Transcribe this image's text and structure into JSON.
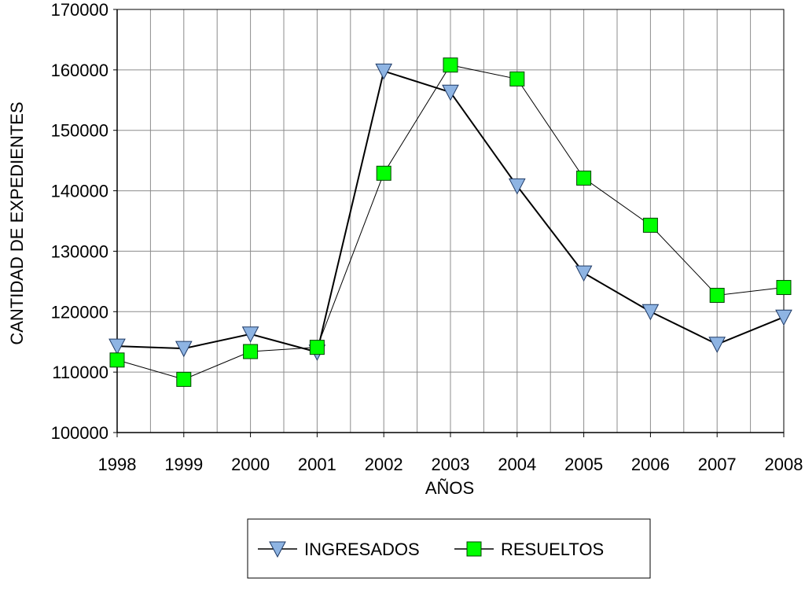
{
  "chart_data": {
    "type": "line",
    "title": "",
    "xlabel": "AÑOS",
    "ylabel": "CANTIDAD DE EXPEDIENTES",
    "x": [
      "1998",
      "1999",
      "2000",
      "2001",
      "2002",
      "2003",
      "2004",
      "2005",
      "2006",
      "2007",
      "2008"
    ],
    "ylim": [
      100000,
      170000
    ],
    "yticks": [
      "100000",
      "110000",
      "120000",
      "130000",
      "140000",
      "150000",
      "160000",
      "170000"
    ],
    "grid": true,
    "legend": "bottom",
    "series": [
      {
        "name": "INGRESADOS",
        "marker": "triangle-down",
        "color": "#8EB4E3",
        "values": [
          114300,
          113900,
          116300,
          113300,
          159800,
          156300,
          140800,
          126400,
          120000,
          114600,
          119100
        ]
      },
      {
        "name": "RESUELTOS",
        "marker": "square",
        "color": "#00FF00",
        "values": [
          112000,
          108800,
          113400,
          114100,
          142900,
          160800,
          158500,
          142100,
          134300,
          122700,
          124000
        ]
      }
    ]
  }
}
